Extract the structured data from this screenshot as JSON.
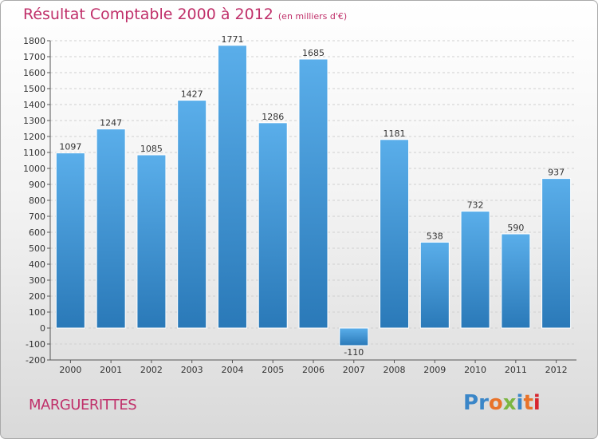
{
  "title": "Résultat Comptable 2000 à 2012",
  "subtitle": "(en milliers d'€)",
  "commune": "MARGUERITTES",
  "brand": {
    "letters": [
      {
        "char": "P",
        "color": "#3a86c8"
      },
      {
        "char": "r",
        "color": "#3a86c8"
      },
      {
        "char": "o",
        "color": "#e8732a"
      },
      {
        "char": "x",
        "color": "#7bb642"
      },
      {
        "char": "i",
        "color": "#3a86c8"
      },
      {
        "char": "t",
        "color": "#e8732a"
      },
      {
        "char": "i",
        "color": "#d7262f"
      }
    ]
  },
  "colors": {
    "title": "#c0306a",
    "bar_top": "#5aaeea",
    "bar_bottom": "#2a79b8",
    "axis": "#555555"
  },
  "chart_data": {
    "type": "bar",
    "title": "Résultat Comptable 2000 à 2012",
    "ylabel": "en milliers d'€",
    "xlabel": "",
    "categories": [
      "2000",
      "2001",
      "2002",
      "2003",
      "2004",
      "2005",
      "2006",
      "2007",
      "2008",
      "2009",
      "2010",
      "2011",
      "2012"
    ],
    "values": [
      1097,
      1247,
      1085,
      1427,
      1771,
      1286,
      1685,
      -110,
      1181,
      538,
      732,
      590,
      937
    ],
    "value_labels": [
      "1097",
      "1247",
      "1085",
      "1427",
      "1771",
      "1286",
      "1685",
      "-110",
      "1181",
      "538",
      "732",
      "590",
      "937"
    ],
    "ylim": [
      -200,
      1800
    ],
    "yticks": [
      -200,
      -100,
      0,
      100,
      200,
      300,
      400,
      500,
      600,
      700,
      800,
      900,
      1000,
      1100,
      1200,
      1300,
      1400,
      1500,
      1600,
      1700,
      1800
    ],
    "grid": true
  }
}
